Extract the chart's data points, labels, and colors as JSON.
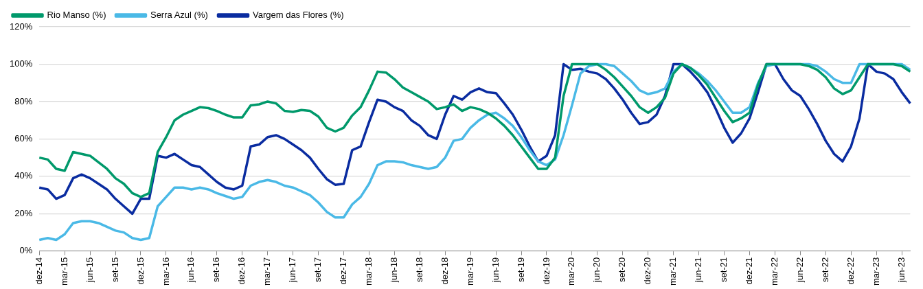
{
  "chart_data": {
    "type": "line",
    "categories": [
      "dez-14",
      null,
      null,
      "mar-15",
      null,
      null,
      "jun-15",
      null,
      null,
      "set-15",
      null,
      null,
      "dez-15",
      null,
      null,
      "mar-16",
      null,
      null,
      "jun-16",
      null,
      null,
      "set-16",
      null,
      null,
      "dez-16",
      null,
      null,
      "mar-17",
      null,
      null,
      "jun-17",
      null,
      null,
      "set-17",
      null,
      null,
      "dez-17",
      null,
      null,
      "mar-18",
      null,
      null,
      "jun-18",
      null,
      null,
      "set-18",
      null,
      null,
      "dez-18",
      null,
      null,
      "mar-19",
      null,
      null,
      "jun-19",
      null,
      null,
      "set-19",
      null,
      null,
      "dez-19",
      null,
      null,
      "mar-20",
      null,
      null,
      "jun-20",
      null,
      null,
      "set-20",
      null,
      null,
      "dez-20",
      null,
      null,
      "mar-21",
      null,
      null,
      "jun-21",
      null,
      null,
      "set-21",
      null,
      null,
      "dez-21",
      null,
      null,
      "mar-22",
      null,
      null,
      "jun-22",
      null,
      null,
      "set-22",
      null,
      null,
      "dez-22",
      null,
      null,
      "mar-23",
      null,
      null,
      "jun-23",
      null
    ],
    "series": [
      {
        "name": "Rio Manso (%)",
        "color": "#00996b",
        "values": [
          50,
          49,
          44,
          43,
          53,
          52,
          51,
          47.5,
          44,
          39,
          36,
          31,
          29,
          31,
          53,
          61,
          70,
          73,
          75,
          77,
          76.5,
          75,
          73,
          71.5,
          71.5,
          78,
          78.5,
          80,
          79,
          75,
          74.5,
          75.5,
          75,
          72,
          66,
          64,
          66,
          72.5,
          77,
          86,
          96,
          95.5,
          92,
          87.5,
          85,
          82.5,
          80,
          76,
          77,
          78.5,
          75,
          77,
          76,
          74,
          71,
          67,
          62,
          56,
          50,
          44,
          44,
          50,
          83,
          100,
          100,
          100,
          100,
          97,
          93,
          88,
          83,
          77,
          74,
          77,
          82,
          95,
          100,
          98,
          94,
          89,
          82,
          75,
          69,
          71,
          74,
          89,
          100,
          100,
          100,
          100,
          100,
          99,
          97,
          93,
          87,
          84,
          86,
          93,
          100,
          100,
          100,
          100,
          99,
          96
        ]
      },
      {
        "name": "Serra Azul (%)",
        "color": "#4ab9e6",
        "values": [
          6,
          7,
          6,
          9,
          15,
          16,
          16,
          15,
          13,
          11,
          10,
          7,
          6,
          7,
          24,
          29,
          34,
          34,
          33,
          34,
          33,
          31,
          29.5,
          28,
          29,
          35,
          37,
          38,
          37,
          35,
          34,
          32,
          30,
          26,
          21,
          18,
          18,
          25,
          29,
          36,
          46,
          48,
          48,
          47.5,
          46,
          45,
          44,
          45,
          50,
          59,
          60,
          66,
          70,
          73,
          74,
          71,
          67,
          61,
          54,
          48,
          46,
          49,
          62,
          78,
          95,
          99,
          100,
          100,
          99,
          95,
          91,
          86,
          84,
          85,
          87,
          96,
          100,
          98,
          95,
          91,
          86,
          80,
          74,
          74,
          77,
          90,
          99,
          100,
          100,
          100,
          100,
          100,
          99,
          96,
          92,
          90,
          90,
          100,
          100,
          100,
          100,
          100,
          100,
          97
        ]
      },
      {
        "name": "Vargem das Flores (%)",
        "color": "#0a2ca0",
        "values": [
          34,
          33,
          28,
          30,
          39,
          41,
          39,
          36,
          33,
          28,
          24,
          20,
          28,
          28,
          51,
          50,
          52,
          49,
          46,
          45,
          41,
          37,
          34,
          33,
          35,
          56,
          57,
          61,
          62,
          60,
          57,
          54,
          50,
          44,
          38.5,
          35.5,
          36,
          54,
          56,
          69,
          81,
          80,
          77,
          75,
          70,
          67,
          62,
          60,
          73,
          83,
          81,
          85,
          87,
          85,
          84.5,
          79,
          73,
          65,
          56,
          48,
          51,
          62,
          100,
          97,
          97.5,
          96,
          95,
          92,
          87,
          81,
          74,
          68,
          69,
          73,
          83,
          100,
          100,
          96,
          91,
          85,
          76,
          66,
          58,
          63,
          71,
          85,
          100,
          100,
          92,
          86,
          83,
          76,
          68,
          59,
          52,
          48,
          56,
          71,
          100,
          96,
          95,
          92,
          85,
          79
        ]
      }
    ],
    "ylim": [
      0,
      120
    ],
    "yticks": [
      {
        "value": 0,
        "label": "0%"
      },
      {
        "value": 20,
        "label": "20%"
      },
      {
        "value": 40,
        "label": "40%"
      },
      {
        "value": 60,
        "label": "60%"
      },
      {
        "value": 80,
        "label": "80%"
      },
      {
        "value": 100,
        "label": "100%"
      },
      {
        "value": 120,
        "label": "120%"
      }
    ],
    "grid": "y",
    "legend": "top left",
    "marker": "none",
    "line_style": "solid"
  }
}
